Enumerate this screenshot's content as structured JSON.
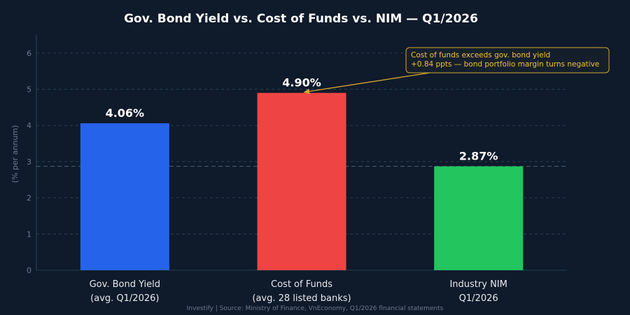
{
  "colors": {
    "background": "#0f1a2a",
    "grid": "#2a4a5a",
    "axis_text": "#6b7c8f",
    "title": "#ffffff",
    "label": "#e6e9ee",
    "annotation_border": "#d4a72c",
    "annotation_text": "#f2c230",
    "annotation_bg": "#151f2c"
  },
  "chart_data": {
    "type": "bar",
    "title": "Gov. Bond Yield vs. Cost of Funds vs. NIM — Q1/2026",
    "ylabel": "(% per annum)",
    "xlabel": "",
    "ylim": [
      0,
      6.5
    ],
    "yticks": [
      0,
      1,
      2,
      3,
      4,
      5,
      6
    ],
    "grid": true,
    "categories": [
      [
        "Gov. Bond Yield",
        "(avg. Q1/2026)"
      ],
      [
        "Cost of Funds",
        "(avg. 28 listed banks)"
      ],
      [
        "Industry NIM",
        "Q1/2026"
      ]
    ],
    "values": [
      4.06,
      4.9,
      2.87
    ],
    "value_labels": [
      "4.06%",
      "4.90%",
      "2.87%"
    ],
    "bar_colors": [
      "#2563eb",
      "#ef4444",
      "#22c55e"
    ],
    "reference_line": {
      "value": 2.87,
      "style": "dashed"
    },
    "annotation": {
      "lines": [
        "Cost of funds exceeds gov. bond yield",
        "+0.84 ppts — bond portfolio margin turns negative"
      ],
      "target_index": 1
    },
    "source": "Investify   |   Source: Ministry of Finance, VnEconomy, Q1/2026 financial statements"
  }
}
